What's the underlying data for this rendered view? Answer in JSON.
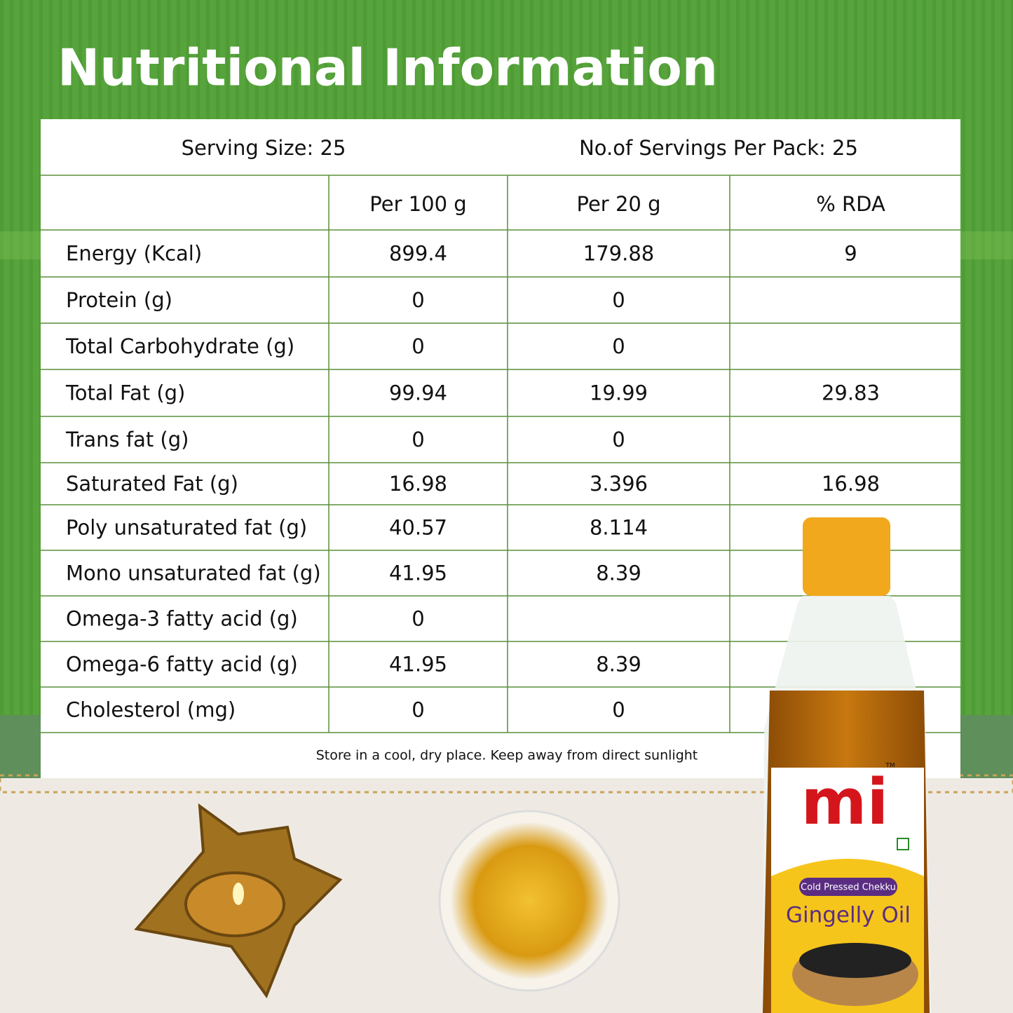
{
  "title": "Nutritional Information",
  "table": {
    "serving_size": "Serving Size: 25",
    "servings_per_pack": "No.of Servings Per Pack: 25",
    "columns": [
      "Per 100 g",
      "Per 20 g",
      "% RDA"
    ],
    "rows": [
      [
        "Energy (Kcal)",
        "899.4",
        "179.88",
        "9"
      ],
      [
        "Protein (g)",
        "0",
        "0",
        null
      ],
      [
        "Total Carbohydrate (g)",
        "0",
        "0",
        null
      ],
      [
        "Total Fat (g)",
        "99.94",
        "19.99",
        "29.83"
      ],
      [
        "Trans fat (g)",
        "0",
        "0",
        null
      ],
      [
        "Saturated Fat (g)",
        "16.98",
        "3.396",
        "16.98"
      ],
      [
        "Poly unsaturated fat (g)",
        "40.57",
        "8.114",
        null
      ],
      [
        "Mono unsaturated fat (g)",
        "41.95",
        "8.39",
        null
      ],
      [
        "Omega-3 fatty acid (g)",
        "0",
        null,
        null
      ],
      [
        "Omega-6 fatty acid (g)",
        "41.95",
        "8.39",
        null
      ],
      [
        "Cholesterol (mg)",
        "0",
        "0",
        null
      ]
    ],
    "note": "Store in a cool, dry place. Keep away from direct sunlight"
  },
  "product": {
    "brand": "mi",
    "trademark": "TM",
    "tagline": "Cold Pressed Chekku",
    "name": "Gingelly Oil"
  }
}
